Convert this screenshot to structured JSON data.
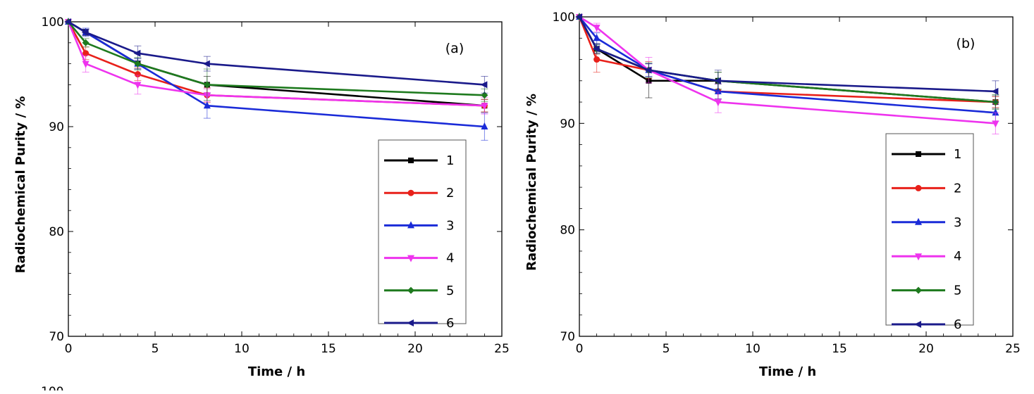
{
  "figure": {
    "panels": [
      {
        "panel_label": "(a)",
        "xlabel": "Time / h",
        "ylabel": "Radiochemical Purity / %"
      },
      {
        "panel_label": "(b)",
        "xlabel": "Time / h",
        "ylabel": "Radiochemical Purity / %"
      }
    ],
    "stray_text": "100"
  },
  "chart_data": [
    {
      "type": "line",
      "title": "",
      "panel_label": "(a)",
      "xlabel": "Time / h",
      "ylabel": "Radiochemical Purity / %",
      "xlim": [
        0,
        25
      ],
      "ylim": [
        70,
        100
      ],
      "xticks": [
        0,
        5,
        10,
        15,
        20,
        25
      ],
      "yticks": [
        70,
        80,
        90,
        100
      ],
      "grid": false,
      "legend_position": "bottom-right",
      "x": [
        0,
        1,
        4,
        8,
        24
      ],
      "series": [
        {
          "name": "1",
          "color": "#000000",
          "marker": "square",
          "values": [
            100,
            99,
            96,
            94,
            92
          ],
          "errors": [
            0,
            0.3,
            0.5,
            0.8,
            0.6
          ]
        },
        {
          "name": "2",
          "color": "#e8201a",
          "marker": "circle",
          "values": [
            100,
            97,
            95,
            93,
            92
          ],
          "errors": [
            0,
            0.6,
            0.6,
            0.7,
            0.6
          ]
        },
        {
          "name": "3",
          "color": "#1a2bd8",
          "marker": "triangle-up",
          "values": [
            100,
            99,
            96,
            92,
            90
          ],
          "errors": [
            0,
            0.4,
            0.5,
            1.2,
            1.3
          ]
        },
        {
          "name": "4",
          "color": "#ee33ee",
          "marker": "triangle-down",
          "values": [
            100,
            96,
            94,
            93,
            92
          ],
          "errors": [
            0,
            0.8,
            0.9,
            0.6,
            0.8
          ]
        },
        {
          "name": "5",
          "color": "#1e7a1e",
          "marker": "diamond",
          "values": [
            100,
            98,
            96,
            94,
            93
          ],
          "errors": [
            0,
            0.4,
            0.6,
            1.5,
            0.6
          ]
        },
        {
          "name": "6",
          "color": "#1a1a8a",
          "marker": "triangle-left",
          "values": [
            100,
            99,
            97,
            96,
            94
          ],
          "errors": [
            0,
            0.3,
            0.7,
            0.7,
            0.8
          ]
        }
      ]
    },
    {
      "type": "line",
      "title": "",
      "panel_label": "(b)",
      "xlabel": "Time / h",
      "ylabel": "Radiochemical Purity / %",
      "xlim": [
        0,
        25
      ],
      "ylim": [
        70,
        100
      ],
      "xticks": [
        0,
        5,
        10,
        15,
        20,
        25
      ],
      "yticks": [
        70,
        80,
        90,
        100
      ],
      "grid": false,
      "legend_position": "bottom-right",
      "x": [
        0,
        1,
        4,
        8,
        24
      ],
      "series": [
        {
          "name": "1",
          "color": "#000000",
          "marker": "square",
          "values": [
            100,
            97,
            94,
            94,
            92
          ],
          "errors": [
            0,
            0.5,
            1.6,
            0.8,
            0.6
          ]
        },
        {
          "name": "2",
          "color": "#e8201a",
          "marker": "circle",
          "values": [
            100,
            96,
            95,
            93,
            92
          ],
          "errors": [
            0,
            1.2,
            0.8,
            0.7,
            0.5
          ]
        },
        {
          "name": "3",
          "color": "#1a2bd8",
          "marker": "triangle-up",
          "values": [
            100,
            98,
            95,
            93,
            91
          ],
          "errors": [
            0,
            0.5,
            0.6,
            0.7,
            0.8
          ]
        },
        {
          "name": "4",
          "color": "#ee33ee",
          "marker": "triangle-down",
          "values": [
            100,
            99,
            95,
            92,
            90
          ],
          "errors": [
            0,
            0.4,
            1.2,
            1.0,
            1.0
          ]
        },
        {
          "name": "5",
          "color": "#1e7a1e",
          "marker": "diamond",
          "values": [
            100,
            97,
            95,
            94,
            92
          ],
          "errors": [
            0,
            0.4,
            0.7,
            0.8,
            0.7
          ]
        },
        {
          "name": "6",
          "color": "#1a1a8a",
          "marker": "triangle-left",
          "values": [
            100,
            97,
            95,
            94,
            93
          ],
          "errors": [
            0,
            0.4,
            0.6,
            1.0,
            1.0
          ]
        }
      ]
    }
  ]
}
